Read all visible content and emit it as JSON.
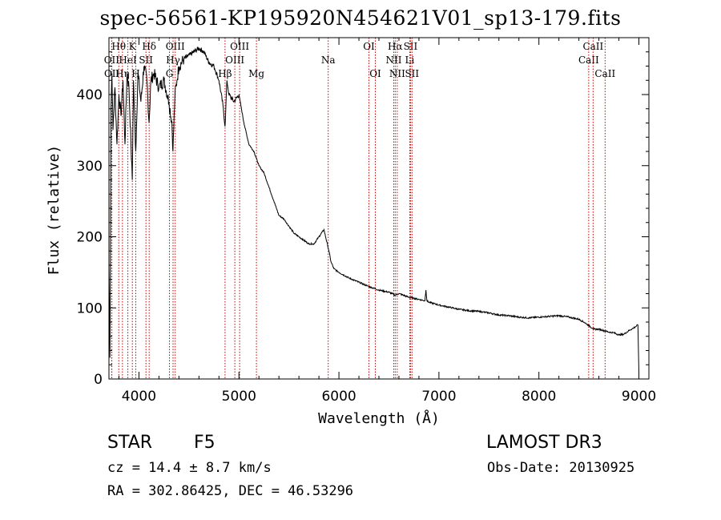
{
  "title": "spec-56561-KP195920N454621V01_sp13-179.fits",
  "info": {
    "object_class": "STAR",
    "subclass": "F5",
    "survey": "LAMOST DR3",
    "cz": "cz = 14.4 ± 8.7 km/s",
    "obs_date": "Obs-Date: 20130925",
    "coords": "RA = 302.86425, DEC =  46.53296"
  },
  "colors": {
    "spectrum": "#000000",
    "lines": "#cc0000",
    "axis": "#000000"
  },
  "chart_data": {
    "type": "line",
    "title": "spec-56561-KP195920N454621V01_sp13-179.fits",
    "xlabel": "Wavelength (Å)",
    "ylabel": "Flux (relative)",
    "xlim": [
      3700,
      9100
    ],
    "ylim": [
      0,
      480
    ],
    "xticks": [
      4000,
      5000,
      6000,
      7000,
      8000,
      9000
    ],
    "yticks": [
      0,
      100,
      200,
      300,
      400
    ],
    "grid": false,
    "series": [
      {
        "name": "spectrum",
        "x": [
          3700,
          3710,
          3720,
          3730,
          3740,
          3760,
          3780,
          3800,
          3820,
          3840,
          3860,
          3880,
          3900,
          3920,
          3933,
          3945,
          3968,
          3990,
          4020,
          4050,
          4080,
          4101,
          4120,
          4150,
          4200,
          4250,
          4300,
          4330,
          4340,
          4360,
          4380,
          4400,
          4450,
          4500,
          4550,
          4600,
          4650,
          4700,
          4750,
          4800,
          4840,
          4861,
          4880,
          4900,
          4950,
          5000,
          5050,
          5100,
          5150,
          5200,
          5250,
          5300,
          5350,
          5400,
          5450,
          5500,
          5550,
          5600,
          5650,
          5700,
          5750,
          5800,
          5850,
          5900,
          5920,
          5950,
          6000,
          6100,
          6200,
          6300,
          6400,
          6500,
          6563,
          6600,
          6700,
          6800,
          6860,
          6870,
          6880,
          6900,
          7000,
          7100,
          7200,
          7300,
          7400,
          7500,
          7600,
          7700,
          7800,
          7900,
          8000,
          8100,
          8200,
          8300,
          8400,
          8450,
          8500,
          8550,
          8600,
          8650,
          8700,
          8750,
          8800,
          8850,
          8900,
          8950,
          8990,
          9000
        ],
        "values": [
          160,
          30,
          380,
          430,
          350,
          410,
          330,
          400,
          370,
          420,
          330,
          430,
          410,
          330,
          280,
          420,
          320,
          430,
          390,
          440,
          420,
          360,
          420,
          430,
          410,
          420,
          390,
          360,
          320,
          400,
          420,
          440,
          450,
          455,
          460,
          465,
          460,
          445,
          440,
          420,
          385,
          355,
          420,
          400,
          390,
          400,
          360,
          330,
          320,
          300,
          290,
          270,
          250,
          230,
          225,
          215,
          205,
          200,
          195,
          190,
          190,
          200,
          210,
          180,
          165,
          155,
          150,
          142,
          136,
          130,
          125,
          122,
          118,
          120,
          115,
          112,
          110,
          125,
          110,
          108,
          104,
          101,
          98,
          96,
          95,
          93,
          90,
          89,
          87,
          86,
          87,
          88,
          89,
          87,
          84,
          80,
          75,
          70,
          70,
          68,
          66,
          65,
          62,
          63,
          68,
          72,
          76,
          10
        ]
      }
    ],
    "line_markers": [
      {
        "label": "Hθ",
        "x": 3798,
        "row": 1
      },
      {
        "label": "OII",
        "x": 3727,
        "row": 2
      },
      {
        "label": "OII",
        "x": 3729,
        "row": 3
      },
      {
        "label": "Hη",
        "x": 3835,
        "row": 3
      },
      {
        "label": "HeI",
        "x": 3889,
        "row": 2
      },
      {
        "label": "K",
        "x": 3934,
        "row": 1
      },
      {
        "label": "H",
        "x": 3968,
        "row": 3
      },
      {
        "label": "SII",
        "x": 4070,
        "row": 2
      },
      {
        "label": "Hδ",
        "x": 4102,
        "row": 1
      },
      {
        "label": "OIII",
        "x": 4363,
        "row": 1
      },
      {
        "label": "Hγ",
        "x": 4341,
        "row": 2
      },
      {
        "label": "G",
        "x": 4305,
        "row": 3
      },
      {
        "label": "Hβ",
        "x": 4861,
        "row": 3
      },
      {
        "label": "OIII",
        "x": 4959,
        "row": 2
      },
      {
        "label": "OIII",
        "x": 5007,
        "row": 1
      },
      {
        "label": "Mg",
        "x": 5175,
        "row": 3
      },
      {
        "label": "Na",
        "x": 5893,
        "row": 2
      },
      {
        "label": "OI",
        "x": 6300,
        "row": 1
      },
      {
        "label": "OI",
        "x": 6364,
        "row": 3
      },
      {
        "label": "NII",
        "x": 6548,
        "row": 2
      },
      {
        "label": "Hα",
        "x": 6563,
        "row": 1
      },
      {
        "label": "NII",
        "x": 6583,
        "row": 3
      },
      {
        "label": "Li",
        "x": 6708,
        "row": 2
      },
      {
        "label": "SII",
        "x": 6716,
        "row": 1
      },
      {
        "label": "SII",
        "x": 6731,
        "row": 3
      },
      {
        "label": "CaII",
        "x": 8498,
        "row": 2
      },
      {
        "label": "CaII",
        "x": 8542,
        "row": 1
      },
      {
        "label": "CaII",
        "x": 8662,
        "row": 3
      }
    ]
  }
}
